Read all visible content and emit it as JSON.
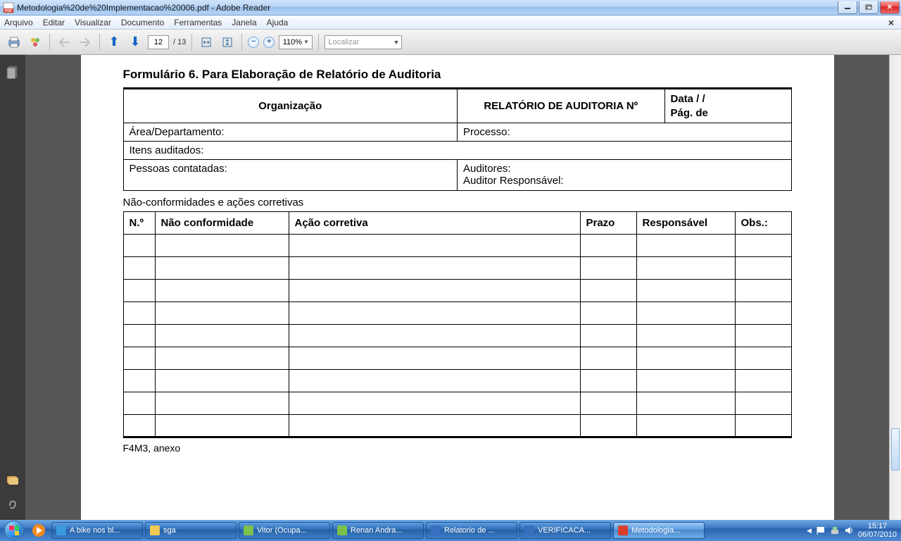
{
  "window": {
    "title": "Metodologia%20de%20Implementacao%20006.pdf - Adobe Reader"
  },
  "menu": {
    "items": [
      "Arquivo",
      "Editar",
      "Visualizar",
      "Documento",
      "Ferramentas",
      "Janela",
      "Ajuda"
    ]
  },
  "toolbar": {
    "page": "12",
    "total": "/ 13",
    "zoom": "110%",
    "find": "Localizar"
  },
  "doc": {
    "title": "Formulário 6. Para Elaboração de Relatório de Auditoria",
    "org": "Organização",
    "header": "RELATÓRIO DE AUDITORIA Nº",
    "data": "Data        /        /",
    "pag": "Pág.         de",
    "area": "Área/Departamento:",
    "proc": "Processo:",
    "itens": "Itens auditados:",
    "pessoas": "Pessoas contatadas:",
    "aud": "Auditores:",
    "audresp": "Auditor Responsável:",
    "nc_title": "Não-conformidades e ações corretivas",
    "cols": {
      "no": "N.º",
      "nc": "Não conformidade",
      "ac": "Ação corretiva",
      "prazo": "Prazo",
      "resp": "Responsável",
      "obs": "Obs.:"
    },
    "footer": "F4M3, anexo",
    "rows": 9
  },
  "taskbar": {
    "items": [
      {
        "label": "A bike nos bl...",
        "color": "#3a9bdc"
      },
      {
        "label": "sga",
        "color": "#f2c955"
      },
      {
        "label": "Vitor (Ocupa...",
        "color": "#7cc04c"
      },
      {
        "label": "Renan Andra...",
        "color": "#7cc04c"
      },
      {
        "label": "Relatorio de ...",
        "color": "#3a6fc0"
      },
      {
        "label": "VERIFICACA...",
        "color": "#3a6fc0"
      },
      {
        "label": "Metodologia...",
        "color": "#d9402c",
        "active": true
      }
    ],
    "time": "15:17",
    "date": "06/07/2010"
  }
}
